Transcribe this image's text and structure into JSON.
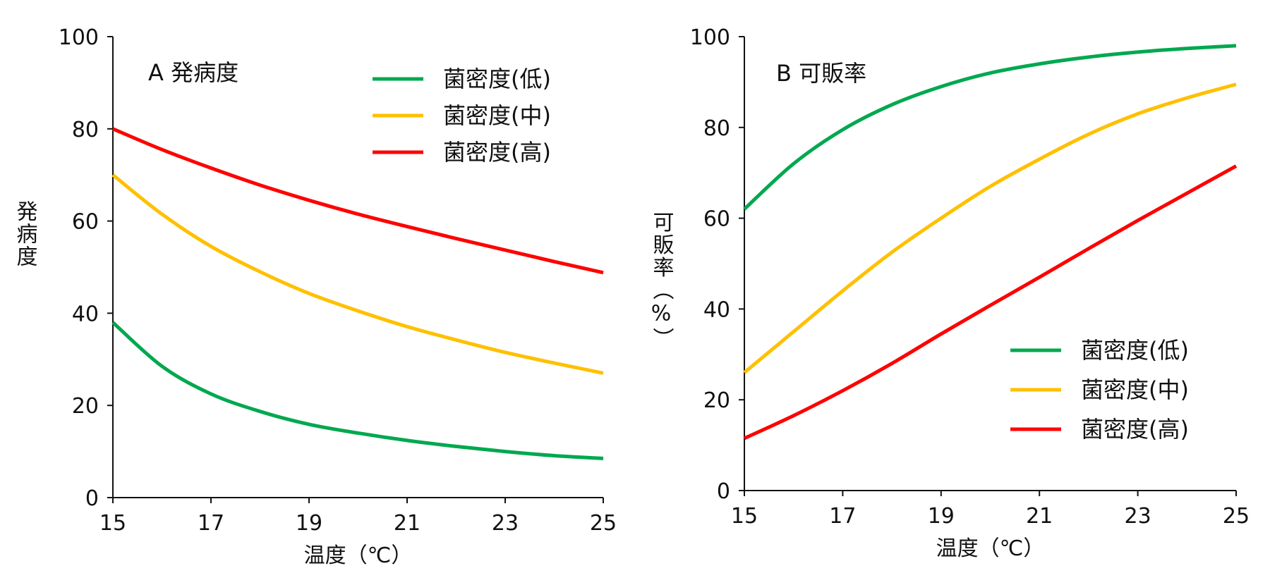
{
  "chart_data": [
    {
      "type": "line",
      "title": "A 発病度",
      "xlabel": "温度（℃）",
      "ylabel": "発病度",
      "x": [
        15,
        16,
        17,
        18,
        19,
        20,
        21,
        22,
        23,
        24,
        25
      ],
      "xticks": [
        "15",
        "17",
        "19",
        "21",
        "23",
        "25"
      ],
      "yticks": [
        "0",
        "20",
        "40",
        "60",
        "80",
        "100"
      ],
      "xlim": [
        15,
        25
      ],
      "ylim": [
        0,
        100
      ],
      "grid": false,
      "legend_position": "top-right",
      "series": [
        {
          "name": "菌密度(低)",
          "color": "#00a84f",
          "values": [
            38,
            28.5,
            22.5,
            18.7,
            15.9,
            14.0,
            12.4,
            11.1,
            10.0,
            9.1,
            8.5
          ]
        },
        {
          "name": "菌密度(中)",
          "color": "#ffc000",
          "values": [
            70,
            61.5,
            54.5,
            49.0,
            44.3,
            40.5,
            37.1,
            34.2,
            31.5,
            29.2,
            27
          ]
        },
        {
          "name": "菌密度(高)",
          "color": "#ff0000",
          "values": [
            80,
            75.5,
            71.5,
            67.8,
            64.5,
            61.5,
            58.8,
            56.2,
            53.7,
            51.2,
            48.8
          ]
        }
      ]
    },
    {
      "type": "line",
      "title": "B 可販率",
      "xlabel": "温度（℃）",
      "ylabel": "可販率（%）",
      "x": [
        15,
        16,
        17,
        18,
        19,
        20,
        21,
        22,
        23,
        24,
        25
      ],
      "xticks": [
        "15",
        "17",
        "19",
        "21",
        "23",
        "25"
      ],
      "yticks": [
        "0",
        "20",
        "40",
        "60",
        "80",
        "100"
      ],
      "xlim": [
        15,
        25
      ],
      "ylim": [
        0,
        100
      ],
      "grid": false,
      "legend_position": "bottom-right",
      "series": [
        {
          "name": "菌密度(低)",
          "color": "#00a84f",
          "values": [
            62,
            72.0,
            79.5,
            85.0,
            89.0,
            92.0,
            94.0,
            95.5,
            96.6,
            97.4,
            98
          ]
        },
        {
          "name": "菌密度(中)",
          "color": "#ffc000",
          "values": [
            26,
            35.0,
            44.0,
            52.5,
            60.0,
            67.0,
            73.0,
            78.5,
            83.0,
            86.5,
            89.5
          ]
        },
        {
          "name": "菌密度(高)",
          "color": "#ff0000",
          "values": [
            11.5,
            16.5,
            22.0,
            28.0,
            34.5,
            40.8,
            47.0,
            53.3,
            59.5,
            65.5,
            71.5
          ]
        }
      ]
    }
  ]
}
